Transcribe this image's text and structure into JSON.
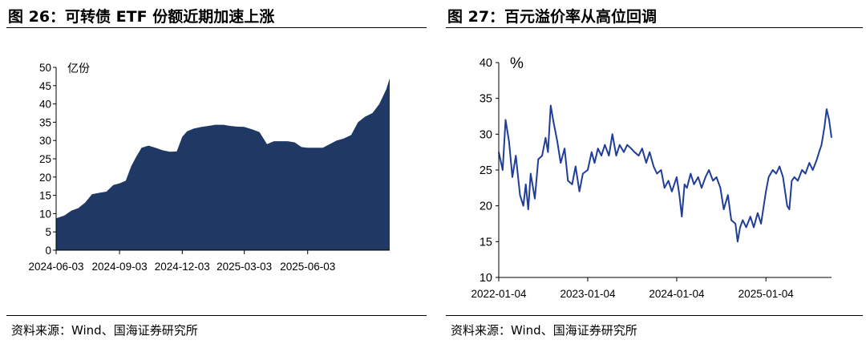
{
  "charts": [
    {
      "title": "图 26：可转债 ETF 份额近期加速上涨",
      "source": "资料来源：Wind、国海证券研究所"
    },
    {
      "title": "图 27：百元溢价率从高位回调",
      "source": "资料来源：Wind、国海证券研究所"
    }
  ],
  "chart_data": [
    {
      "type": "area",
      "title": "可转债 ETF 份额近期加速上涨",
      "unit_label": "亿份",
      "ylim": [
        0,
        50
      ],
      "yticks": [
        0,
        5,
        10,
        15,
        20,
        25,
        30,
        35,
        40,
        45,
        50
      ],
      "xlim": [
        "2024-06-03",
        "2025-09-30"
      ],
      "xticks": [
        "2024-06-03",
        "2024-09-03",
        "2024-12-03",
        "2025-03-03",
        "2025-06-03"
      ],
      "color": "#1f3864",
      "grid": false,
      "series": [
        {
          "x": [
            "2024-06-03",
            "2024-06-15",
            "2024-06-25",
            "2024-07-05",
            "2024-07-15",
            "2024-07-25",
            "2024-08-05",
            "2024-08-15",
            "2024-08-25",
            "2024-09-03",
            "2024-09-12",
            "2024-09-20",
            "2024-09-27",
            "2024-10-05",
            "2024-10-15",
            "2024-10-25",
            "2024-11-05",
            "2024-11-15",
            "2024-11-25",
            "2024-12-03",
            "2024-12-10",
            "2024-12-20",
            "2024-12-31",
            "2025-01-10",
            "2025-01-20",
            "2025-02-01",
            "2025-02-10",
            "2025-02-20",
            "2025-03-03",
            "2025-03-15",
            "2025-03-25",
            "2025-04-05",
            "2025-04-15",
            "2025-04-25",
            "2025-05-05",
            "2025-05-15",
            "2025-05-25",
            "2025-06-03",
            "2025-06-15",
            "2025-06-25",
            "2025-07-05",
            "2025-07-15",
            "2025-07-25",
            "2025-08-05",
            "2025-08-15",
            "2025-08-25",
            "2025-09-05",
            "2025-09-15",
            "2025-09-25",
            "2025-09-30"
          ],
          "values": [
            8.7,
            9.5,
            10.8,
            11.5,
            13.0,
            15.3,
            15.7,
            16.0,
            17.8,
            18.3,
            19.0,
            23.0,
            25.5,
            28.0,
            28.6,
            28.0,
            27.3,
            26.9,
            27.0,
            31.0,
            32.5,
            33.3,
            33.7,
            34.0,
            34.3,
            34.3,
            34.0,
            33.8,
            33.7,
            33.0,
            32.3,
            29.0,
            29.8,
            29.8,
            29.8,
            29.5,
            28.2,
            28.0,
            28.0,
            28.0,
            29.0,
            30.0,
            30.5,
            31.5,
            35.0,
            36.5,
            37.5,
            40.0,
            44.0,
            47.0
          ]
        }
      ]
    },
    {
      "type": "line",
      "title": "百元溢价率从高位回调",
      "unit_label": "%",
      "ylim": [
        10,
        40
      ],
      "yticks": [
        10,
        15,
        20,
        25,
        30,
        35,
        40
      ],
      "xlim": [
        "2022-01-04",
        "2025-09-30"
      ],
      "xticks": [
        "2022-01-04",
        "2023-01-04",
        "2024-01-04",
        "2025-01-04"
      ],
      "color": "#1f3d99",
      "grid": false,
      "series": [
        {
          "x": [
            "2022-01-04",
            "2022-01-20",
            "2022-02-01",
            "2022-02-15",
            "2022-03-01",
            "2022-03-15",
            "2022-04-01",
            "2022-04-15",
            "2022-04-25",
            "2022-05-05",
            "2022-05-15",
            "2022-06-01",
            "2022-06-15",
            "2022-07-01",
            "2022-07-15",
            "2022-07-25",
            "2022-08-05",
            "2022-08-15",
            "2022-09-01",
            "2022-09-15",
            "2022-10-01",
            "2022-10-15",
            "2022-11-01",
            "2022-11-15",
            "2022-12-01",
            "2022-12-15",
            "2023-01-04",
            "2023-01-20",
            "2023-02-01",
            "2023-02-15",
            "2023-03-01",
            "2023-03-15",
            "2023-04-01",
            "2023-04-15",
            "2023-05-01",
            "2023-05-15",
            "2023-06-01",
            "2023-06-15",
            "2023-07-01",
            "2023-07-15",
            "2023-08-01",
            "2023-08-15",
            "2023-09-01",
            "2023-09-15",
            "2023-10-01",
            "2023-10-15",
            "2023-11-01",
            "2023-11-15",
            "2023-12-01",
            "2023-12-15",
            "2024-01-04",
            "2024-01-15",
            "2024-01-25",
            "2024-02-05",
            "2024-02-15",
            "2024-03-01",
            "2024-03-15",
            "2024-04-01",
            "2024-04-15",
            "2024-05-01",
            "2024-05-15",
            "2024-06-01",
            "2024-06-15",
            "2024-07-01",
            "2024-07-15",
            "2024-08-01",
            "2024-08-15",
            "2024-09-01",
            "2024-09-10",
            "2024-09-20",
            "2024-10-01",
            "2024-10-15",
            "2024-11-01",
            "2024-11-15",
            "2024-12-01",
            "2024-12-15",
            "2025-01-04",
            "2025-01-15",
            "2025-02-01",
            "2025-02-15",
            "2025-03-01",
            "2025-03-15",
            "2025-04-01",
            "2025-04-10",
            "2025-04-20",
            "2025-05-01",
            "2025-05-15",
            "2025-06-01",
            "2025-06-15",
            "2025-07-01",
            "2025-07-15",
            "2025-08-01",
            "2025-08-10",
            "2025-08-20",
            "2025-09-01",
            "2025-09-10",
            "2025-09-20",
            "2025-09-30"
          ],
          "values": [
            27.5,
            25.0,
            32.0,
            29.0,
            24.0,
            27.0,
            21.5,
            20.0,
            23.0,
            19.5,
            24.5,
            21.0,
            26.5,
            27.0,
            29.5,
            27.5,
            34.0,
            32.0,
            29.0,
            26.0,
            28.0,
            23.5,
            23.0,
            25.5,
            22.0,
            24.5,
            25.0,
            27.5,
            26.0,
            28.0,
            27.0,
            28.5,
            27.0,
            30.0,
            27.0,
            28.5,
            27.5,
            28.5,
            28.0,
            27.5,
            27.0,
            28.0,
            26.0,
            27.5,
            25.5,
            24.5,
            25.0,
            22.5,
            23.5,
            22.0,
            24.0,
            21.5,
            18.5,
            23.0,
            22.5,
            24.5,
            23.0,
            24.0,
            22.5,
            24.0,
            25.0,
            23.5,
            24.0,
            22.5,
            19.5,
            21.5,
            18.0,
            17.5,
            15.0,
            17.0,
            18.0,
            17.0,
            18.5,
            17.0,
            19.0,
            17.5,
            22.0,
            24.0,
            25.0,
            24.5,
            25.5,
            24.0,
            20.0,
            19.5,
            23.5,
            24.0,
            23.5,
            25.0,
            24.5,
            26.0,
            25.0,
            26.5,
            27.5,
            28.5,
            31.0,
            33.5,
            32.0,
            29.5
          ]
        }
      ]
    }
  ]
}
